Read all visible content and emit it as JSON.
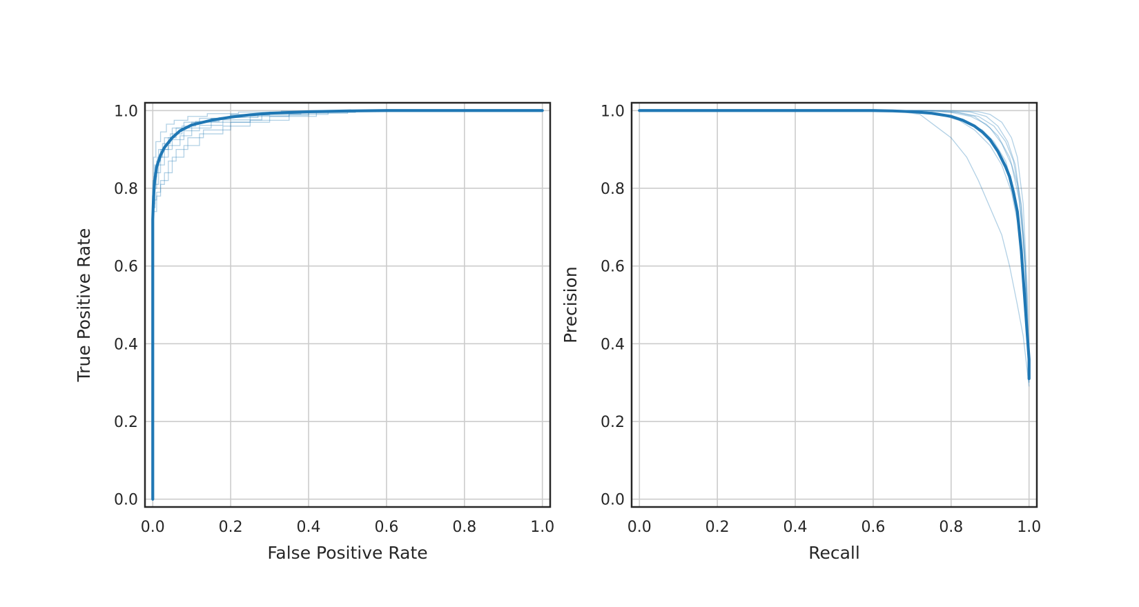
{
  "colors": {
    "series": "#1f77b4",
    "grid": "#cccccc",
    "frame": "#262626",
    "text": "#262626",
    "background": "#ffffff"
  },
  "chart_data": [
    {
      "type": "line",
      "title": "",
      "xlabel": "False Positive Rate",
      "ylabel": "True Positive Rate",
      "xlim": [
        -0.02,
        1.02
      ],
      "ylim": [
        -0.02,
        1.02
      ],
      "xticks": [
        "0.0",
        "0.2",
        "0.4",
        "0.6",
        "0.8",
        "1.0"
      ],
      "yticks": [
        "0.0",
        "0.2",
        "0.4",
        "0.6",
        "0.8",
        "1.0"
      ],
      "grid": true,
      "legend": "none",
      "mean_curve": {
        "x": [
          0.0,
          0.0,
          0.0,
          0.002,
          0.005,
          0.01,
          0.02,
          0.03,
          0.05,
          0.07,
          0.1,
          0.15,
          0.2,
          0.25,
          0.3,
          0.4,
          0.5,
          0.6,
          0.8,
          1.0
        ],
        "y": [
          0.0,
          0.5,
          0.72,
          0.78,
          0.82,
          0.855,
          0.885,
          0.905,
          0.93,
          0.948,
          0.963,
          0.975,
          0.983,
          0.989,
          0.993,
          0.997,
          0.999,
          1.0,
          1.0,
          1.0
        ]
      },
      "fold_curves": [
        {
          "x": [
            0.0,
            0.0,
            0.003,
            0.01,
            0.02,
            0.04,
            0.06,
            0.1,
            0.15,
            0.2,
            0.3,
            0.4,
            0.5
          ],
          "y": [
            0.0,
            0.78,
            0.83,
            0.87,
            0.9,
            0.93,
            0.955,
            0.97,
            0.98,
            0.988,
            0.995,
            0.998,
            1.0
          ]
        },
        {
          "x": [
            0.0,
            0.0,
            0.005,
            0.015,
            0.03,
            0.05,
            0.08,
            0.12,
            0.2,
            0.3,
            0.45
          ],
          "y": [
            0.0,
            0.8,
            0.86,
            0.9,
            0.93,
            0.955,
            0.97,
            0.98,
            0.99,
            0.996,
            1.0
          ]
        },
        {
          "x": [
            0.0,
            0.0,
            0.005,
            0.01,
            0.02,
            0.04,
            0.07,
            0.1,
            0.15,
            0.25,
            0.35,
            0.5
          ],
          "y": [
            0.0,
            0.76,
            0.8,
            0.84,
            0.88,
            0.91,
            0.935,
            0.955,
            0.97,
            0.985,
            0.993,
            1.0
          ]
        },
        {
          "x": [
            0.0,
            0.0,
            0.01,
            0.02,
            0.04,
            0.06,
            0.09,
            0.13,
            0.2,
            0.3,
            0.42
          ],
          "y": [
            0.0,
            0.74,
            0.78,
            0.82,
            0.87,
            0.9,
            0.93,
            0.95,
            0.97,
            0.985,
            1.0
          ]
        },
        {
          "x": [
            0.0,
            0.0,
            0.01,
            0.02,
            0.03,
            0.05,
            0.08,
            0.12,
            0.18,
            0.25,
            0.35,
            0.45
          ],
          "y": [
            0.0,
            0.77,
            0.79,
            0.81,
            0.84,
            0.88,
            0.91,
            0.94,
            0.96,
            0.975,
            0.99,
            1.0
          ]
        },
        {
          "x": [
            0.0,
            0.0,
            0.002,
            0.008,
            0.02,
            0.035,
            0.055,
            0.09,
            0.14,
            0.22,
            0.33,
            0.4
          ],
          "y": [
            0.0,
            0.82,
            0.88,
            0.92,
            0.945,
            0.965,
            0.975,
            0.985,
            0.992,
            0.996,
            0.999,
            1.0
          ]
        },
        {
          "x": [
            0.0,
            0.0,
            0.004,
            0.012,
            0.025,
            0.045,
            0.075,
            0.11,
            0.17,
            0.27,
            0.38,
            0.48
          ],
          "y": [
            0.0,
            0.79,
            0.84,
            0.88,
            0.915,
            0.94,
            0.96,
            0.972,
            0.982,
            0.991,
            0.997,
            1.0
          ]
        },
        {
          "x": [
            0.0,
            0.0,
            0.006,
            0.015,
            0.03,
            0.05,
            0.08,
            0.12,
            0.18,
            0.28,
            0.4,
            0.52
          ],
          "y": [
            0.0,
            0.75,
            0.81,
            0.86,
            0.9,
            0.925,
            0.948,
            0.962,
            0.976,
            0.988,
            0.995,
            1.0
          ]
        }
      ]
    },
    {
      "type": "line",
      "title": "",
      "xlabel": "Recall",
      "ylabel": "Precision",
      "xlim": [
        -0.02,
        1.02
      ],
      "ylim": [
        -0.02,
        1.02
      ],
      "xticks": [
        "0.0",
        "0.2",
        "0.4",
        "0.6",
        "0.8",
        "1.0"
      ],
      "yticks": [
        "0.0",
        "0.2",
        "0.4",
        "0.6",
        "0.8",
        "1.0"
      ],
      "grid": true,
      "legend": "none",
      "mean_curve": {
        "x": [
          0.0,
          0.5,
          0.6,
          0.65,
          0.7,
          0.75,
          0.8,
          0.83,
          0.86,
          0.88,
          0.9,
          0.92,
          0.94,
          0.95,
          0.96,
          0.97,
          0.98,
          0.99,
          0.995,
          1.0,
          1.0
        ],
        "y": [
          1.0,
          1.0,
          1.0,
          0.999,
          0.997,
          0.993,
          0.985,
          0.975,
          0.96,
          0.945,
          0.925,
          0.895,
          0.855,
          0.83,
          0.79,
          0.74,
          0.64,
          0.5,
          0.43,
          0.36,
          0.31
        ]
      },
      "fold_curves": [
        {
          "x": [
            0.0,
            0.65,
            0.72,
            0.76,
            0.8,
            0.84,
            0.87,
            0.9,
            0.93,
            0.95,
            0.97,
            0.985,
            1.0
          ],
          "y": [
            1.0,
            1.0,
            0.99,
            0.96,
            0.93,
            0.88,
            0.82,
            0.75,
            0.68,
            0.6,
            0.5,
            0.42,
            0.29
          ]
        },
        {
          "x": [
            0.0,
            0.7,
            0.78,
            0.84,
            0.88,
            0.91,
            0.94,
            0.96,
            0.975,
            0.99,
            1.0
          ],
          "y": [
            1.0,
            1.0,
            0.99,
            0.97,
            0.95,
            0.92,
            0.87,
            0.8,
            0.7,
            0.5,
            0.33
          ]
        },
        {
          "x": [
            0.0,
            0.72,
            0.8,
            0.85,
            0.89,
            0.92,
            0.95,
            0.97,
            0.985,
            0.995,
            1.0
          ],
          "y": [
            1.0,
            1.0,
            0.995,
            0.985,
            0.965,
            0.935,
            0.88,
            0.81,
            0.68,
            0.52,
            0.34
          ]
        },
        {
          "x": [
            0.0,
            0.75,
            0.82,
            0.87,
            0.91,
            0.94,
            0.96,
            0.98,
            0.99,
            1.0
          ],
          "y": [
            1.0,
            1.0,
            0.995,
            0.985,
            0.96,
            0.92,
            0.87,
            0.76,
            0.62,
            0.31
          ]
        },
        {
          "x": [
            0.0,
            0.78,
            0.85,
            0.89,
            0.92,
            0.945,
            0.965,
            0.98,
            0.99,
            1.0
          ],
          "y": [
            1.0,
            1.0,
            0.996,
            0.985,
            0.96,
            0.92,
            0.86,
            0.75,
            0.6,
            0.3
          ]
        },
        {
          "x": [
            0.0,
            0.8,
            0.87,
            0.9,
            0.93,
            0.955,
            0.97,
            0.985,
            0.995,
            1.0
          ],
          "y": [
            1.0,
            1.0,
            0.997,
            0.99,
            0.97,
            0.93,
            0.88,
            0.76,
            0.55,
            0.32
          ]
        },
        {
          "x": [
            0.0,
            0.68,
            0.76,
            0.82,
            0.86,
            0.9,
            0.93,
            0.955,
            0.975,
            0.99,
            1.0
          ],
          "y": [
            1.0,
            1.0,
            0.993,
            0.975,
            0.95,
            0.91,
            0.86,
            0.79,
            0.69,
            0.52,
            0.33
          ]
        },
        {
          "x": [
            0.0,
            0.74,
            0.81,
            0.86,
            0.9,
            0.93,
            0.955,
            0.975,
            0.99,
            1.0
          ],
          "y": [
            1.0,
            1.0,
            0.996,
            0.985,
            0.955,
            0.915,
            0.86,
            0.77,
            0.6,
            0.3
          ]
        }
      ]
    }
  ]
}
